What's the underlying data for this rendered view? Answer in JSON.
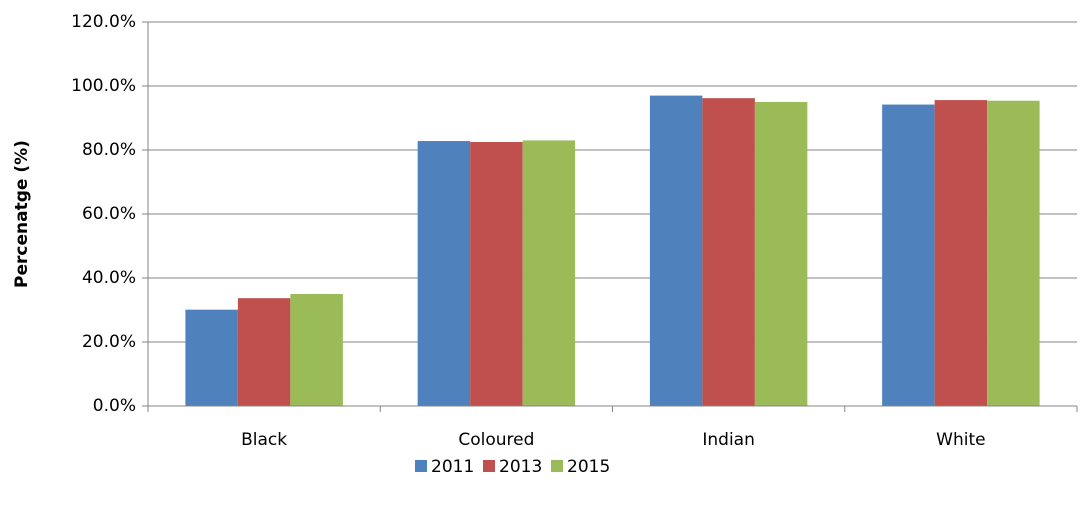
{
  "chart_data": {
    "type": "bar",
    "y_label": "Percenatge (%)",
    "categories": [
      "Black",
      "Coloured",
      "Indian",
      "White"
    ],
    "series": [
      {
        "name": "2011",
        "color": "#4f81bd",
        "values": [
          30.1,
          82.8,
          97.0,
          94.2
        ]
      },
      {
        "name": "2013",
        "color": "#c0504d",
        "values": [
          33.7,
          82.5,
          96.2,
          95.6
        ]
      },
      {
        "name": "2015",
        "color": "#9bbb59",
        "values": [
          35.0,
          83.0,
          95.0,
          95.4
        ]
      }
    ],
    "ylim": [
      0,
      120
    ],
    "yticks": [
      {
        "value": 0,
        "label": "0.0%"
      },
      {
        "value": 20,
        "label": "20.0%"
      },
      {
        "value": 40,
        "label": "40.0%"
      },
      {
        "value": 60,
        "label": "60.0%"
      },
      {
        "value": 80,
        "label": "80.0%"
      },
      {
        "value": 100,
        "label": "100.0%"
      },
      {
        "value": 120,
        "label": "120.0%"
      }
    ],
    "grid": true,
    "legend": "bottom"
  }
}
